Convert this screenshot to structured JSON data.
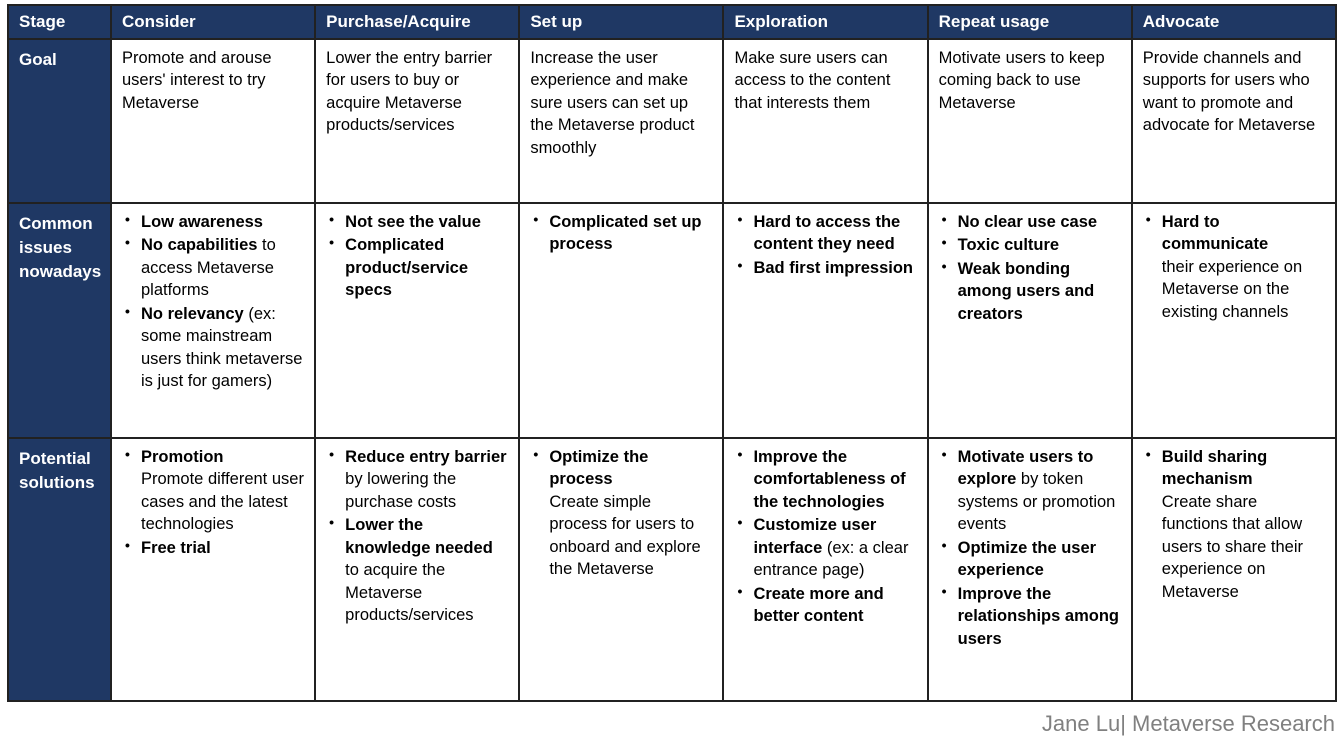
{
  "colors": {
    "header_bg": "#1f3864",
    "header_text": "#ffffff",
    "border": "#212121",
    "footer_text": "#808080"
  },
  "footer": {
    "credit": "Jane Lu| Metaverse Research"
  },
  "table": {
    "stage_header": "Stage",
    "row_labels": {
      "goal": "Goal",
      "issues": "Common issues nowadays",
      "solutions": "Potential solutions"
    },
    "columns": [
      {
        "header": "Consider",
        "goal": "Promote and arouse users' interest to try Metaverse",
        "issues": [
          [
            {
              "t": "Low awareness",
              "b": true
            }
          ],
          [
            {
              "t": "No capabilities",
              "b": true
            },
            {
              "t": " to access Metaverse platforms",
              "b": false
            }
          ],
          [
            {
              "t": "No relevancy",
              "b": true
            },
            {
              "t": " (ex: some mainstream users think metaverse is just for gamers)",
              "b": false
            }
          ]
        ],
        "solutions": [
          [
            {
              "t": "Promotion",
              "b": true
            },
            {
              "t": "\nPromote different user cases and the latest technologies",
              "b": false
            }
          ],
          [
            {
              "t": "Free trial",
              "b": true
            }
          ]
        ]
      },
      {
        "header": "Purchase/Acquire",
        "goal": "Lower the entry barrier for users to buy or acquire Metaverse products/services",
        "issues": [
          [
            {
              "t": "Not see the value",
              "b": true
            }
          ],
          [
            {
              "t": "Complicated product/service specs",
              "b": true
            }
          ]
        ],
        "solutions": [
          [
            {
              "t": "Reduce entry barrier",
              "b": true
            },
            {
              "t": " by lowering the purchase costs",
              "b": false
            }
          ],
          [
            {
              "t": "Lower the knowledge needed",
              "b": true
            },
            {
              "t": " to acquire the Metaverse products/services",
              "b": false
            }
          ]
        ]
      },
      {
        "header": "Set up",
        "goal": "Increase the user experience and make sure users can set up the Metaverse product smoothly",
        "issues": [
          [
            {
              "t": "Complicated set up process",
              "b": true
            }
          ]
        ],
        "solutions": [
          [
            {
              "t": "Optimize the process",
              "b": true
            },
            {
              "t": "\nCreate simple process for users to onboard and explore the Metaverse",
              "b": false
            }
          ]
        ]
      },
      {
        "header": "Exploration",
        "goal": "Make sure users can access to the content that interests them",
        "issues": [
          [
            {
              "t": "Hard to access the content they need",
              "b": true
            }
          ],
          [
            {
              "t": "Bad first impression",
              "b": true
            }
          ]
        ],
        "solutions": [
          [
            {
              "t": "Improve the comfortableness of the technologies",
              "b": true
            }
          ],
          [
            {
              "t": "Customize user interface",
              "b": true
            },
            {
              "t": " (ex: a clear entrance page)",
              "b": false
            }
          ],
          [
            {
              "t": "Create more and better content",
              "b": true
            }
          ]
        ]
      },
      {
        "header": "Repeat usage",
        "goal": "Motivate users to keep coming back to use Metaverse",
        "issues": [
          [
            {
              "t": "No clear use case",
              "b": true
            }
          ],
          [
            {
              "t": "Toxic culture",
              "b": true
            }
          ],
          [
            {
              "t": "Weak bonding among users and creators",
              "b": true
            }
          ]
        ],
        "solutions": [
          [
            {
              "t": "Motivate users to explore",
              "b": true
            },
            {
              "t": " by token systems or promotion events",
              "b": false
            }
          ],
          [
            {
              "t": "Optimize the user experience",
              "b": true
            }
          ],
          [
            {
              "t": "Improve the relationships among users",
              "b": true
            }
          ]
        ]
      },
      {
        "header": "Advocate",
        "goal": "Provide channels and supports for users who want to promote and advocate for Metaverse",
        "issues": [
          [
            {
              "t": "Hard to communicate",
              "b": true
            },
            {
              "t": "\ntheir experience on Metaverse on the existing channels",
              "b": false
            }
          ]
        ],
        "solutions": [
          [
            {
              "t": "Build sharing mechanism",
              "b": true
            },
            {
              "t": "\nCreate share functions that allow users to share their experience on Metaverse",
              "b": false
            }
          ]
        ]
      }
    ]
  }
}
